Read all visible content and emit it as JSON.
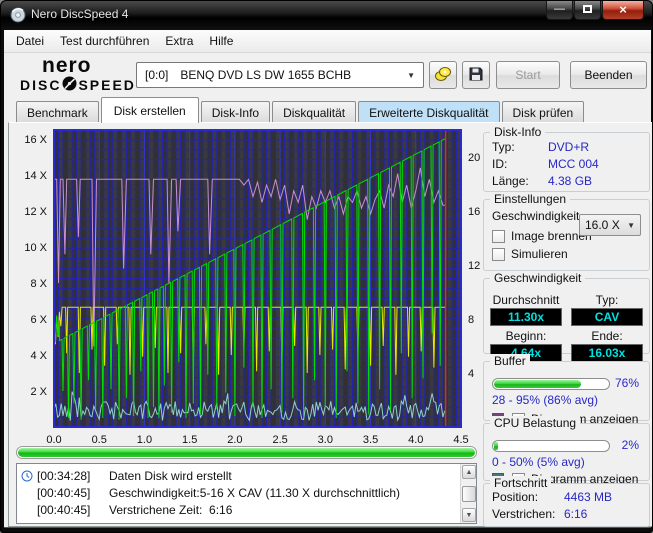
{
  "window": {
    "title": "Nero DiscSpeed 4"
  },
  "menu": {
    "items": [
      "Datei",
      "Test durchführen",
      "Extra",
      "Hilfe"
    ]
  },
  "toolbar": {
    "logo": {
      "line1": "nero",
      "word1": "DISC",
      "word2": "SPEED"
    },
    "drive_select": {
      "id": "[0:0]",
      "name": "BENQ DVD LS DW 1655 BCHB"
    },
    "start_label": "Start",
    "quit_label": "Beenden"
  },
  "tabs": {
    "items": [
      {
        "label": "Benchmark"
      },
      {
        "label": "Disk erstellen",
        "active": true
      },
      {
        "label": "Disk-Info"
      },
      {
        "label": "Diskqualität"
      },
      {
        "label": "Erweiterte Diskqualität",
        "highlighted": true
      },
      {
        "label": "Disk prüfen"
      }
    ]
  },
  "chart_data": {
    "type": "line",
    "x_range": [
      0,
      4.5
    ],
    "x_ticks": [
      "0.0",
      "0.5",
      "1.0",
      "1.5",
      "2.0",
      "2.5",
      "3.0",
      "3.5",
      "4.0",
      "4.5"
    ],
    "left_axis": {
      "ticks": [
        "16 X",
        "14 X",
        "12 X",
        "10 X",
        "8 X",
        "6 X",
        "4 X",
        "2 X"
      ],
      "tick_values": [
        16,
        14,
        12,
        10,
        8,
        6,
        4,
        2
      ],
      "max": 16.5
    },
    "right_axis": {
      "ticks": [
        "20",
        "16",
        "12",
        "8",
        "4"
      ],
      "tick_values": [
        20,
        16,
        12,
        8,
        4
      ],
      "max": 22
    },
    "position_marker_x": 4.33,
    "grid": {
      "on": true,
      "color_minor": "#2323ae",
      "color_major": "#3434cc",
      "bg": "#3a3a3e",
      "stripe": "#313135"
    },
    "series": [
      {
        "name": "buffer-level-percent",
        "color": "#c98fd0",
        "kind": "percent_points",
        "scale": 0.16,
        "points": [
          [
            0,
            86
          ],
          [
            0.03,
            86
          ],
          [
            0.05,
            50
          ],
          [
            0.07,
            86
          ],
          [
            0.1,
            86
          ],
          [
            0.12,
            60
          ],
          [
            0.14,
            86
          ],
          [
            0.25,
            86
          ],
          [
            0.27,
            66
          ],
          [
            0.29,
            86
          ],
          [
            0.42,
            86
          ],
          [
            0.44,
            28
          ],
          [
            0.47,
            86
          ],
          [
            0.6,
            86
          ],
          [
            0.75,
            86
          ],
          [
            0.77,
            55
          ],
          [
            0.8,
            86
          ],
          [
            0.95,
            86
          ],
          [
            1.05,
            86
          ],
          [
            1.07,
            60
          ],
          [
            1.1,
            86
          ],
          [
            1.25,
            86
          ],
          [
            1.27,
            50
          ],
          [
            1.3,
            86
          ],
          [
            1.35,
            86
          ],
          [
            1.37,
            68
          ],
          [
            1.4,
            86
          ],
          [
            1.55,
            86
          ],
          [
            1.7,
            86
          ],
          [
            1.72,
            60
          ],
          [
            1.75,
            86
          ],
          [
            1.9,
            86
          ],
          [
            2.05,
            86
          ],
          [
            2.1,
            84
          ],
          [
            2.15,
            86
          ],
          [
            2.2,
            80
          ],
          [
            2.25,
            85
          ],
          [
            2.3,
            78
          ],
          [
            2.35,
            84
          ],
          [
            2.4,
            80
          ],
          [
            2.45,
            86
          ],
          [
            2.5,
            79
          ],
          [
            2.55,
            84
          ],
          [
            2.6,
            74
          ],
          [
            2.65,
            82
          ],
          [
            2.7,
            78
          ],
          [
            2.75,
            84
          ],
          [
            2.8,
            72
          ],
          [
            2.85,
            80
          ],
          [
            2.9,
            76
          ],
          [
            2.95,
            82
          ],
          [
            3.0,
            78
          ],
          [
            3.05,
            82
          ],
          [
            3.1,
            76
          ],
          [
            3.15,
            80
          ],
          [
            3.2,
            74
          ],
          [
            3.25,
            80
          ],
          [
            3.3,
            78
          ],
          [
            3.35,
            82
          ],
          [
            3.4,
            76
          ],
          [
            3.45,
            80
          ],
          [
            3.5,
            74
          ],
          [
            3.55,
            79
          ],
          [
            3.6,
            82
          ],
          [
            3.65,
            76
          ],
          [
            3.7,
            84
          ],
          [
            3.75,
            80
          ],
          [
            3.8,
            88
          ],
          [
            3.85,
            78
          ],
          [
            3.9,
            84
          ],
          [
            3.95,
            76
          ],
          [
            4.0,
            82
          ],
          [
            4.05,
            90
          ],
          [
            4.1,
            80
          ],
          [
            4.15,
            86
          ],
          [
            4.2,
            78
          ],
          [
            4.25,
            82
          ],
          [
            4.3,
            77
          ],
          [
            4.33,
            77
          ]
        ]
      },
      {
        "name": "cpu-usage",
        "color": "#8fd0c8",
        "kind": "noise",
        "base": 0.9,
        "amp": 0.55,
        "spike": 0.7,
        "x_end": 4.33
      },
      {
        "name": "source-read-speed",
        "color": "#e8e800",
        "kind": "flat",
        "level": 6.65,
        "x1": 4.33,
        "lead": [
          [
            0,
            5.4
          ],
          [
            0.015,
            4.6
          ],
          [
            0.03,
            6.1
          ],
          [
            0.045,
            5.0
          ],
          [
            0.06,
            6.4
          ],
          [
            0.075,
            5.6
          ],
          [
            0.09,
            6.65
          ]
        ],
        "spikes": [
          [
            0.14,
            4.1
          ],
          [
            0.28,
            3.0
          ],
          [
            0.42,
            4.3
          ],
          [
            0.56,
            3.4
          ],
          [
            0.7,
            4.6
          ],
          [
            0.84,
            2.9
          ],
          [
            0.98,
            3.9
          ],
          [
            1.12,
            4.4
          ],
          [
            1.26,
            3.0
          ],
          [
            1.4,
            4.1
          ],
          [
            1.54,
            3.3
          ],
          [
            1.68,
            4.6
          ],
          [
            1.82,
            2.9
          ],
          [
            1.96,
            4.0
          ],
          [
            2.1,
            4.4
          ],
          [
            2.24,
            3.1
          ],
          [
            2.38,
            4.2
          ],
          [
            2.52,
            3.5
          ],
          [
            2.66,
            4.5
          ],
          [
            2.8,
            3.0
          ],
          [
            2.94,
            4.0
          ],
          [
            3.08,
            4.3
          ],
          [
            3.22,
            3.2
          ],
          [
            3.36,
            4.1
          ],
          [
            3.5,
            3.4
          ],
          [
            3.64,
            4.5
          ],
          [
            3.78,
            2.9
          ],
          [
            3.92,
            3.9
          ],
          [
            4.06,
            4.2
          ],
          [
            4.2,
            3.3
          ]
        ]
      },
      {
        "name": "write-speed",
        "color": "#00dd00",
        "kind": "ramp",
        "x0": 0,
        "y0": 4.64,
        "x1": 4.33,
        "y1": 16.03,
        "lead": [
          [
            0,
            5.6
          ],
          [
            0.015,
            4.7
          ],
          [
            0.03,
            6.2
          ],
          [
            0.045,
            5.1
          ],
          [
            0.06,
            5.9
          ]
        ],
        "spikes": [
          [
            0.1,
            2.0
          ],
          [
            0.16,
            0.5
          ],
          [
            0.22,
            1.3
          ],
          [
            0.3,
            0.4
          ],
          [
            0.38,
            2.6
          ],
          [
            0.46,
            1.0
          ],
          [
            0.54,
            0.5
          ],
          [
            0.63,
            2.1
          ],
          [
            0.72,
            0.4
          ],
          [
            0.8,
            1.6
          ],
          [
            0.88,
            0.6
          ],
          [
            0.96,
            3.1
          ],
          [
            1.04,
            0.5
          ],
          [
            1.1,
            1.1
          ],
          [
            1.16,
            0.5
          ],
          [
            1.22,
            2.3
          ],
          [
            1.3,
            0.8
          ],
          [
            1.38,
            3.6
          ],
          [
            1.46,
            0.5
          ],
          [
            1.54,
            1.3
          ],
          [
            1.62,
            0.7
          ],
          [
            1.7,
            2.9
          ],
          [
            1.8,
            1.0
          ],
          [
            1.9,
            1.9
          ],
          [
            2.0,
            0.6
          ],
          [
            2.1,
            3.3
          ],
          [
            2.2,
            1.1
          ],
          [
            2.3,
            0.5
          ],
          [
            2.4,
            2.1
          ],
          [
            2.52,
            0.8
          ],
          [
            2.64,
            1.6
          ],
          [
            2.76,
            0.6
          ],
          [
            2.88,
            2.6
          ],
          [
            3.0,
            1.1
          ],
          [
            3.12,
            0.5
          ],
          [
            3.24,
            3.1
          ],
          [
            3.36,
            1.3
          ],
          [
            3.48,
            0.7
          ],
          [
            3.6,
            2.1
          ],
          [
            3.72,
            0.9
          ],
          [
            3.84,
            4.1
          ],
          [
            3.96,
            1.6
          ],
          [
            4.08,
            2.7
          ],
          [
            4.18,
            5.2
          ],
          [
            4.27,
            3.4
          ]
        ]
      }
    ]
  },
  "progress_bar": {
    "percent": 100
  },
  "log": {
    "entries": [
      {
        "icon": "clock",
        "time": "[00:34:28]",
        "text": "Daten Disk wird erstellt"
      },
      {
        "icon": "",
        "time": "[00:40:45]",
        "text": "Geschwindigkeit:5-16 X CAV (11.30 X durchschnittlich)"
      },
      {
        "icon": "",
        "time": "[00:40:45]",
        "text": "Verstrichene Zeit:  6:16"
      }
    ]
  },
  "sidebar": {
    "disk_info": {
      "title": "Disk-Info",
      "rows": [
        {
          "label": "Typ:",
          "value": "DVD+R"
        },
        {
          "label": "ID:",
          "value": "MCC 004"
        },
        {
          "label": "Länge:",
          "value": "4.38 GB"
        }
      ]
    },
    "einstellungen": {
      "title": "Einstellungen",
      "speed_label": "Geschwindigkeit",
      "speed_value": "16.0 X",
      "checkboxes": [
        {
          "label": "Image brennen",
          "checked": false
        },
        {
          "label": "Simulieren",
          "checked": false
        }
      ]
    },
    "geschwindigkeit": {
      "title": "Geschwindigkeit",
      "cells": [
        {
          "label": "Durchschnitt",
          "value": "11.30x"
        },
        {
          "label": "Typ:",
          "value": "CAV"
        },
        {
          "label": "Beginn:",
          "value": "4.64x"
        },
        {
          "label": "Ende:",
          "value": "16.03x"
        }
      ]
    },
    "buffer": {
      "title": "Buffer",
      "percent": 76,
      "percent_label": "76%",
      "range_label": "28 - 95% (86% avg)",
      "checkbox_label": "Diagramm anzeigen",
      "checked": true,
      "swatch_color": "#7b3f7b"
    },
    "cpu": {
      "title": "CPU Belastung",
      "percent": 2,
      "percent_label": "2%",
      "range_label": "0 - 50% (5% avg)",
      "checkbox_label": "Diagramm anzeigen",
      "checked": true,
      "swatch_color": "#3f7b7b"
    },
    "fortschritt": {
      "title": "Fortschritt",
      "rows": [
        {
          "label": "Position:",
          "value": "4463 MB"
        },
        {
          "label": "Verstrichen:",
          "value": "6:16"
        }
      ]
    }
  },
  "ui": {
    "check_glyph": "✓",
    "dropdown_arrow": "▼",
    "min_glyph": "—",
    "close_glyph": "×",
    "scroll_up": "▲",
    "scroll_down": "▼",
    "colors": {
      "tab_highlight": "#bfe0f7",
      "value_blue": "#2727c8",
      "lcd_cyan": "#00e0e0",
      "marker_red": "#d23030"
    }
  }
}
